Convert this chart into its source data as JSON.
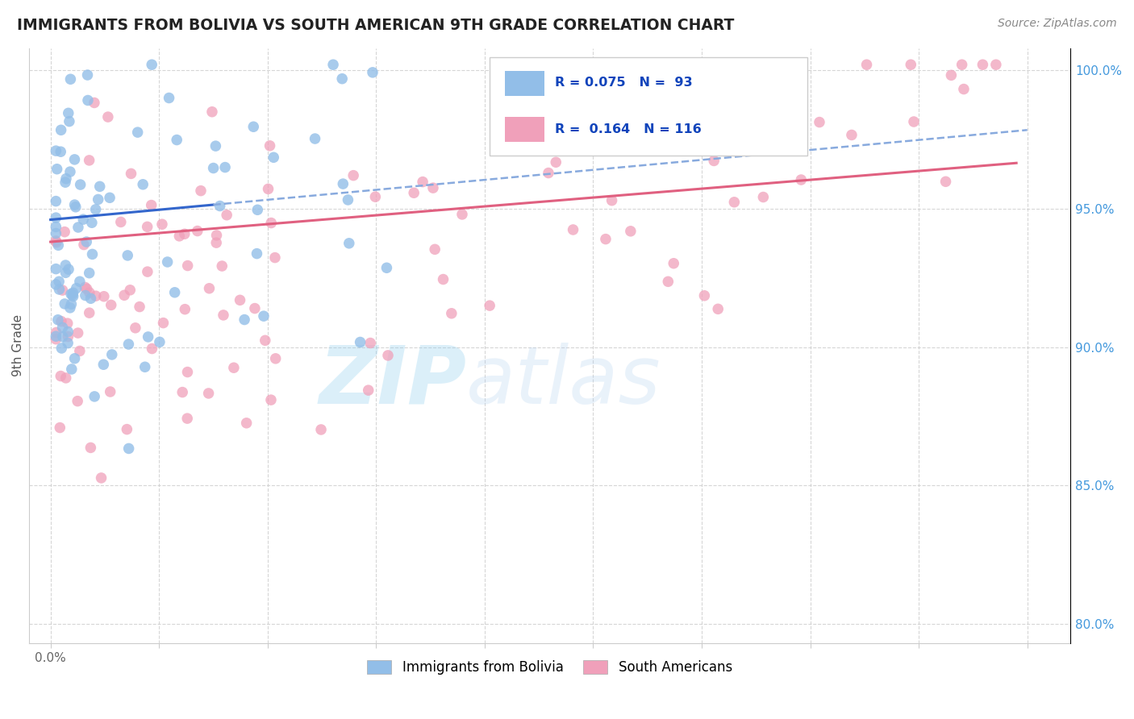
{
  "title": "IMMIGRANTS FROM BOLIVIA VS SOUTH AMERICAN 9TH GRADE CORRELATION CHART",
  "source_text": "Source: ZipAtlas.com",
  "ylabel": "9th Grade",
  "xlim": [
    -0.004,
    0.188
  ],
  "ylim": [
    0.793,
    1.008
  ],
  "xtick_vals": [
    0.0,
    0.02,
    0.04,
    0.06,
    0.08,
    0.1,
    0.12,
    0.14,
    0.16,
    0.18
  ],
  "ytick_vals": [
    0.8,
    0.85,
    0.9,
    0.95,
    1.0
  ],
  "yticklabels": [
    "80.0%",
    "85.0%",
    "90.0%",
    "95.0%",
    "100.0%"
  ],
  "blue_color": "#92BEE8",
  "pink_color": "#F0A0BA",
  "trend_blue_solid_color": "#3366CC",
  "trend_blue_dash_color": "#88AADE",
  "trend_pink_color": "#E06080",
  "legend_label_blue": "Immigrants from Bolivia",
  "legend_label_pink": "South Americans",
  "watermark_zip_color": "#88CCEE",
  "watermark_atlas_color": "#AACCEE",
  "grid_color": "#CCCCCC",
  "title_color": "#222222",
  "source_color": "#888888",
  "ylabel_color": "#555555",
  "right_tick_color": "#4499DD"
}
